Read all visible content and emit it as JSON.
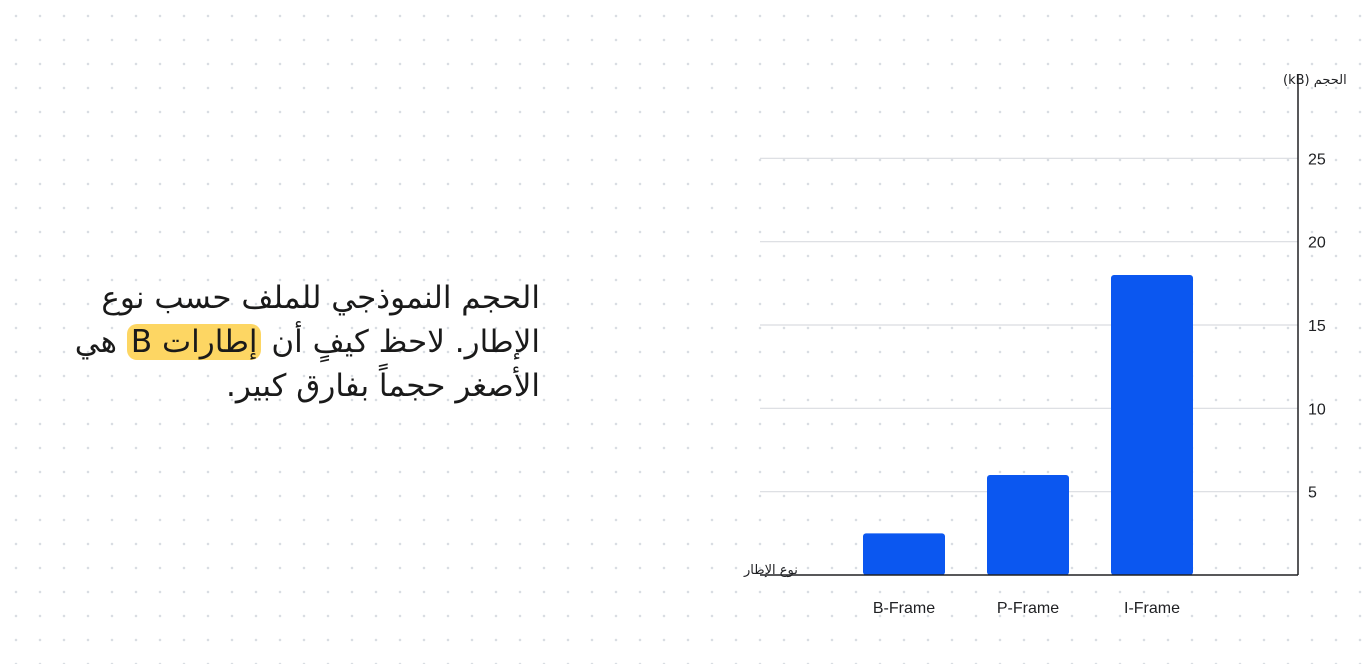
{
  "text": {
    "part1": "الحجم النموذجي للملف حسب نوع الإطار. لاحظ كيفٍ أن",
    "highlight": "إطارات B",
    "part2": "هي الأصغر حجماً بفارق كبير."
  },
  "chart_data": {
    "type": "bar",
    "categories": [
      "B-Frame",
      "P-Frame",
      "I-Frame"
    ],
    "values": [
      2.5,
      6,
      18
    ],
    "ylabel": "الحجم (kB)",
    "xlabel": "نوع الإطار",
    "yticks": [
      5,
      10,
      15,
      20,
      25
    ],
    "ylim": [
      0,
      30
    ],
    "grid": true,
    "y_axis_side": "right",
    "colors": {
      "bar": "#0b57f0",
      "grid": "#dadce0",
      "axis": "#202124",
      "highlight": "#fdd663"
    }
  }
}
